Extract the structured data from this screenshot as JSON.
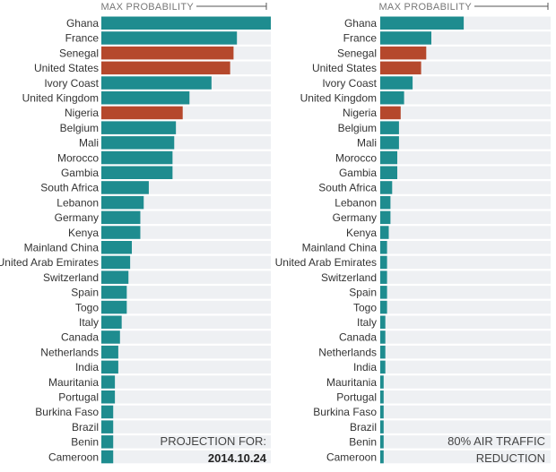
{
  "colors": {
    "teal": "#1E8C8F",
    "red": "#B5482C",
    "track": "#EEF0F3"
  },
  "chart_data": [
    {
      "type": "bar",
      "orientation": "horizontal",
      "header": "MAX PROBABILITY",
      "annotation": [
        "PROJECTION FOR:",
        "2014.10.24"
      ],
      "categories": [
        "Ghana",
        "France",
        "Senegal",
        "United States",
        "Ivory Coast",
        "United Kingdom",
        "Nigeria",
        "Belgium",
        "Mali",
        "Morocco",
        "Gambia",
        "South Africa",
        "Lebanon",
        "Germany",
        "Kenya",
        "Mainland China",
        "United Arab Emirates",
        "Switzerland",
        "Spain",
        "Togo",
        "Italy",
        "Canada",
        "Netherlands",
        "India",
        "Mauritania",
        "Portugal",
        "Burkina Faso",
        "Brazil",
        "Benin",
        "Cameroon"
      ],
      "values": [
        1.0,
        0.8,
        0.78,
        0.76,
        0.65,
        0.52,
        0.48,
        0.44,
        0.43,
        0.42,
        0.42,
        0.28,
        0.25,
        0.23,
        0.23,
        0.18,
        0.17,
        0.16,
        0.15,
        0.15,
        0.12,
        0.11,
        0.1,
        0.1,
        0.08,
        0.08,
        0.07,
        0.07,
        0.07,
        0.07
      ],
      "highlight": [
        "Senegal",
        "United States",
        "Nigeria"
      ],
      "xlim": [
        0,
        1
      ]
    },
    {
      "type": "bar",
      "orientation": "horizontal",
      "header": "MAX PROBABILITY",
      "annotation": [
        "80% AIR TRAFFIC",
        "REDUCTION"
      ],
      "categories": [
        "Ghana",
        "France",
        "Senegal",
        "United States",
        "Ivory Coast",
        "United Kingdom",
        "Nigeria",
        "Belgium",
        "Mali",
        "Morocco",
        "Gambia",
        "South Africa",
        "Lebanon",
        "Germany",
        "Kenya",
        "Mainland China",
        "United Arab Emirates",
        "Switzerland",
        "Spain",
        "Togo",
        "Italy",
        "Canada",
        "Netherlands",
        "India",
        "Mauritania",
        "Portugal",
        "Burkina Faso",
        "Brazil",
        "Benin",
        "Cameroon"
      ],
      "values": [
        0.49,
        0.3,
        0.27,
        0.24,
        0.19,
        0.14,
        0.12,
        0.11,
        0.11,
        0.1,
        0.1,
        0.07,
        0.06,
        0.06,
        0.05,
        0.04,
        0.04,
        0.04,
        0.04,
        0.04,
        0.03,
        0.03,
        0.03,
        0.03,
        0.02,
        0.02,
        0.02,
        0.02,
        0.02,
        0.02
      ],
      "highlight": [
        "Senegal",
        "United States",
        "Nigeria"
      ],
      "xlim": [
        0,
        1
      ]
    }
  ]
}
